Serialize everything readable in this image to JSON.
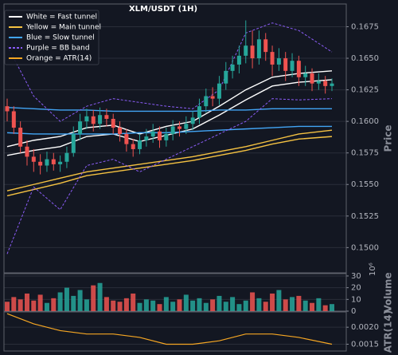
{
  "chart_data": [
    {
      "type": "candlestick",
      "title": "XLM/USDT (1H)",
      "y_label": "Price",
      "ylim": [
        0.148,
        0.1693
      ],
      "yticks": [
        {
          "value": 0.15,
          "label": "0.1500"
        },
        {
          "value": 0.1525,
          "label": "0.1525"
        },
        {
          "value": 0.155,
          "label": "0.1550"
        },
        {
          "value": 0.1575,
          "label": "0.1575"
        },
        {
          "value": 0.16,
          "label": "0.1600"
        },
        {
          "value": 0.1625,
          "label": "0.1625"
        },
        {
          "value": 0.165,
          "label": "0.1650"
        },
        {
          "value": 0.1675,
          "label": "0.1675"
        }
      ],
      "grid": true,
      "legend": "upper left",
      "up_color": "#26a69a",
      "down_color": "#ef5350",
      "open": [
        0.1612,
        0.1608,
        0.1595,
        0.158,
        0.1572,
        0.1568,
        0.1565,
        0.157,
        0.1566,
        0.1568,
        0.1575,
        0.159,
        0.16,
        0.1604,
        0.1598,
        0.1605,
        0.1602,
        0.1595,
        0.159,
        0.1582,
        0.1578,
        0.1585,
        0.1588,
        0.1592,
        0.1585,
        0.159,
        0.1596,
        0.1594,
        0.1598,
        0.1603,
        0.1612,
        0.162,
        0.1618,
        0.163,
        0.164,
        0.1645,
        0.1652,
        0.166,
        0.165,
        0.1665,
        0.1655,
        0.1645,
        0.165,
        0.164,
        0.1648,
        0.1635,
        0.1638,
        0.163,
        0.1632,
        0.1628
      ],
      "high": [
        0.1618,
        0.1612,
        0.16,
        0.1585,
        0.1578,
        0.1574,
        0.1576,
        0.1575,
        0.1573,
        0.158,
        0.1596,
        0.1606,
        0.161,
        0.1609,
        0.1611,
        0.161,
        0.1606,
        0.16,
        0.1594,
        0.1586,
        0.159,
        0.1594,
        0.1598,
        0.1596,
        0.1595,
        0.1601,
        0.16,
        0.1604,
        0.1608,
        0.1618,
        0.1626,
        0.1627,
        0.1636,
        0.1647,
        0.1652,
        0.166,
        0.168,
        0.1672,
        0.1672,
        0.167,
        0.166,
        0.1658,
        0.1655,
        0.1654,
        0.1652,
        0.1644,
        0.1642,
        0.1638,
        0.1636,
        0.1634
      ],
      "low": [
        0.16,
        0.159,
        0.1575,
        0.1565,
        0.156,
        0.1558,
        0.156,
        0.1561,
        0.156,
        0.1563,
        0.1572,
        0.1585,
        0.1594,
        0.1592,
        0.1594,
        0.1596,
        0.159,
        0.1584,
        0.1576,
        0.1572,
        0.1574,
        0.158,
        0.1583,
        0.1579,
        0.158,
        0.1585,
        0.1588,
        0.159,
        0.1593,
        0.1598,
        0.1607,
        0.1612,
        0.1613,
        0.1625,
        0.1634,
        0.1638,
        0.1646,
        0.1642,
        0.1645,
        0.1648,
        0.1636,
        0.164,
        0.1632,
        0.1635,
        0.1628,
        0.1628,
        0.1624,
        0.1625,
        0.1622,
        0.1624
      ],
      "close": [
        0.1608,
        0.1595,
        0.158,
        0.1572,
        0.1568,
        0.1565,
        0.157,
        0.1566,
        0.1568,
        0.1575,
        0.159,
        0.16,
        0.1604,
        0.1598,
        0.1605,
        0.1602,
        0.1595,
        0.159,
        0.1582,
        0.1578,
        0.1585,
        0.1588,
        0.1592,
        0.1585,
        0.159,
        0.1596,
        0.1594,
        0.1598,
        0.1603,
        0.1612,
        0.162,
        0.1618,
        0.163,
        0.164,
        0.1645,
        0.1652,
        0.166,
        0.165,
        0.1665,
        0.1655,
        0.1645,
        0.165,
        0.164,
        0.1648,
        0.1635,
        0.1638,
        0.163,
        0.1632,
        0.1628,
        0.163
      ],
      "line_x": [
        0,
        4,
        8,
        12,
        16,
        20,
        24,
        28,
        32,
        36,
        40,
        44,
        49
      ],
      "series": [
        {
          "name": "White = Fast tunnel",
          "color": "#ffffff",
          "dashed": false,
          "upper": [
            0.158,
            0.1585,
            0.1588,
            0.1595,
            0.1597,
            0.159,
            0.1596,
            0.16,
            0.1612,
            0.1625,
            0.1635,
            0.1638,
            0.164
          ],
          "lower": [
            0.1573,
            0.1577,
            0.158,
            0.1588,
            0.159,
            0.1584,
            0.1589,
            0.1594,
            0.1605,
            0.1617,
            0.1628,
            0.1631,
            0.1633
          ]
        },
        {
          "name": "Yellow = Main tunnel",
          "color": "#f5c242",
          "dashed": false,
          "upper": [
            0.1545,
            0.155,
            0.1555,
            0.156,
            0.1563,
            0.1566,
            0.1569,
            0.1572,
            0.1576,
            0.158,
            0.1585,
            0.159,
            0.1593
          ],
          "lower": [
            0.1541,
            0.1546,
            0.1551,
            0.1557,
            0.156,
            0.1563,
            0.1566,
            0.1569,
            0.1573,
            0.1577,
            0.1582,
            0.1586,
            0.1588
          ]
        },
        {
          "name": "Blue = Slow tunnel",
          "color": "#42a5f5",
          "dashed": false,
          "upper": [
            0.1611,
            0.161,
            0.1609,
            0.1609,
            0.1608,
            0.1608,
            0.1608,
            0.1608,
            0.1609,
            0.1609,
            0.161,
            0.161,
            0.161
          ],
          "lower": [
            0.1591,
            0.159,
            0.159,
            0.159,
            0.159,
            0.1591,
            0.1591,
            0.1592,
            0.1593,
            0.1594,
            0.1595,
            0.1596,
            0.1596
          ]
        },
        {
          "name": "Purple = BB band",
          "color": "#8a5cf6",
          "dashed": true,
          "upper": [
            0.166,
            0.162,
            0.16,
            0.1612,
            0.1618,
            0.1615,
            0.1612,
            0.161,
            0.1625,
            0.167,
            0.1678,
            0.1672,
            0.1655
          ],
          "lower": [
            0.1495,
            0.1548,
            0.153,
            0.1565,
            0.157,
            0.156,
            0.157,
            0.158,
            0.159,
            0.16,
            0.1618,
            0.1617,
            0.1618
          ]
        }
      ]
    },
    {
      "type": "bar",
      "y_label": "Volume",
      "offset_label": "10⁶",
      "ylim": [
        0,
        32
      ],
      "yticks": [
        0,
        10,
        20,
        30
      ],
      "grid": true,
      "values": [
        8,
        12,
        10,
        15,
        9,
        14,
        7,
        11,
        16,
        20,
        13,
        18,
        10,
        22,
        24,
        12,
        9,
        8,
        11,
        15,
        7,
        10,
        9,
        6,
        12,
        8,
        10,
        14,
        9,
        11,
        7,
        10,
        13,
        8,
        12,
        6,
        9,
        16,
        11,
        8,
        15,
        18,
        10,
        12,
        13,
        9,
        7,
        11,
        5,
        6
      ]
    },
    {
      "type": "line",
      "y_label": "ATR(14)",
      "ylim": [
        0.0013,
        0.00245
      ],
      "yticks": [
        {
          "value": 0.0015,
          "label": "0.0015"
        },
        {
          "value": 0.002,
          "label": "0.0020"
        }
      ],
      "grid": true,
      "series": [
        {
          "name": "Orange = ATR(14)",
          "color": "#f5a623",
          "x": [
            0,
            4,
            8,
            12,
            16,
            20,
            24,
            28,
            32,
            36,
            40,
            44,
            49
          ],
          "values": [
            0.0024,
            0.0021,
            0.0019,
            0.0018,
            0.0018,
            0.0017,
            0.0015,
            0.0015,
            0.0016,
            0.0018,
            0.0018,
            0.0017,
            0.0015
          ]
        }
      ]
    }
  ]
}
